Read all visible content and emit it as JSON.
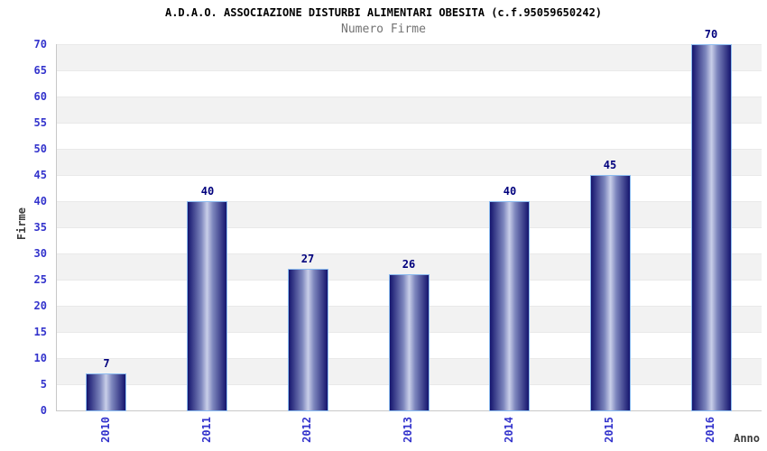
{
  "chart_data": {
    "type": "bar",
    "title": "A.D.A.O. ASSOCIAZIONE DISTURBI ALIMENTARI OBESITA (c.f.95059650242)",
    "subtitle": "Numero Firme",
    "xlabel": "Anno",
    "ylabel": "Firme",
    "categories": [
      "2010",
      "2011",
      "2012",
      "2013",
      "2014",
      "2015",
      "2016"
    ],
    "values": [
      7,
      40,
      27,
      26,
      40,
      45,
      70
    ],
    "ylim": [
      0,
      70
    ],
    "ytick_step": 5,
    "yticks": [
      0,
      5,
      10,
      15,
      20,
      25,
      30,
      35,
      40,
      45,
      50,
      55,
      60,
      65,
      70
    ],
    "grid": "alternating-horizontal-bands",
    "legend": "none",
    "colors": {
      "bar_dark": "#15156e",
      "bar_mid": "#7d86bd",
      "bar_light": "#c9cfe9",
      "bar_border": "#8cbcf0",
      "tick_label": "#3333cc",
      "value_label": "#00007d",
      "band_gray": "#f2f2f2",
      "axis_line": "#c8c8c8",
      "title": "#000000",
      "subtitle": "#737373",
      "axis_title": "#3c3c3c"
    }
  }
}
